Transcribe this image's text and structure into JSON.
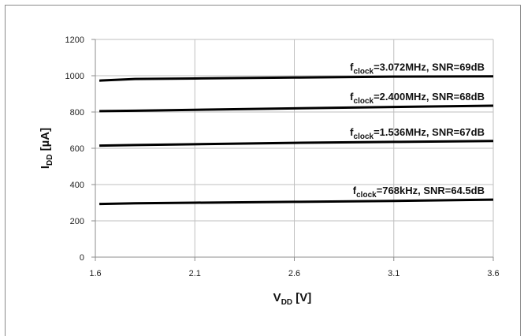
{
  "chart_data": {
    "type": "line",
    "title": "",
    "xlabel": {
      "main": "V",
      "sub": "DD",
      "unit": " [V]"
    },
    "ylabel": {
      "main": "I",
      "sub": "DD",
      "unit": " [µA]"
    },
    "xlim": [
      1.6,
      3.6
    ],
    "ylim": [
      0,
      1200
    ],
    "xticks": [
      "1.6",
      "2.1",
      "2.6",
      "3.1",
      "3.6"
    ],
    "yticks": [
      "0",
      "200",
      "400",
      "600",
      "800",
      "1000",
      "1200"
    ],
    "grid": true,
    "legend": "inline labels above lines",
    "series": [
      {
        "label_prefix": "f",
        "label_sub": "clock",
        "label_rest": "=3.072MHz, SNR=69dB",
        "x": [
          1.62,
          1.8,
          2.1,
          2.6,
          3.1,
          3.6
        ],
        "y": [
          973,
          982,
          985,
          990,
          995,
          997
        ]
      },
      {
        "label_prefix": "f",
        "label_sub": "clock",
        "label_rest": "=2.400MHz, SNR=68dB",
        "x": [
          1.62,
          1.8,
          2.1,
          2.6,
          3.1,
          3.6
        ],
        "y": [
          805,
          807,
          812,
          820,
          828,
          835
        ]
      },
      {
        "label_prefix": "f",
        "label_sub": "clock",
        "label_rest": "=1.536MHz, SNR=67dB",
        "x": [
          1.62,
          1.8,
          2.1,
          2.6,
          3.1,
          3.6
        ],
        "y": [
          615,
          618,
          622,
          630,
          635,
          640
        ]
      },
      {
        "label_prefix": "f",
        "label_sub": "clock",
        "label_rest": "=768kHz, SNR=64.5dB",
        "x": [
          1.62,
          1.8,
          2.1,
          2.6,
          3.1,
          3.6
        ],
        "y": [
          293,
          297,
          300,
          305,
          310,
          317
        ]
      }
    ],
    "colors": {
      "line": "#000000",
      "grid": "#bfbfbf",
      "axis": "#8c8c8c"
    }
  }
}
